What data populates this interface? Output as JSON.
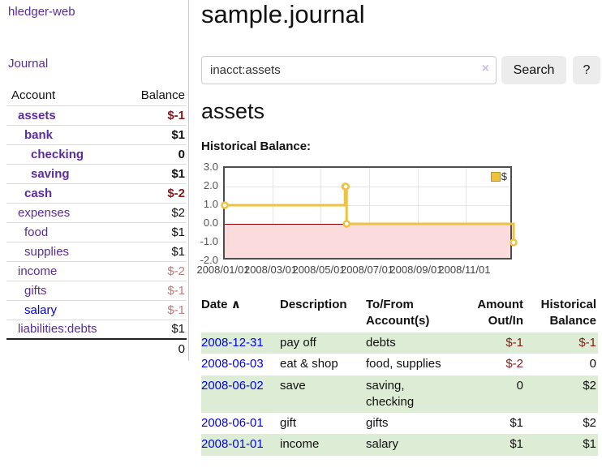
{
  "colors": {
    "link_purple": "#5a2ca0",
    "link_blue": "#0000ee",
    "negative_strong": "#841a1a",
    "negative_soft": "#bd7b7b",
    "row_stripe_green": "#ddecd4",
    "chart_line_gold": "#edc240",
    "chart_negative_region": "#fbdbdb",
    "chart_zero_line": "#8b0000",
    "button_gray": "#ececec"
  },
  "sidebar": {
    "brand": "hledger-web",
    "nav_journal": "Journal",
    "accounts_table": {
      "header_account": "Account",
      "header_balance": "Balance",
      "rows": [
        {
          "label": "assets",
          "indent": 0,
          "bold": true,
          "link_color": "purple",
          "balance": "$-1",
          "balance_style": "neg-strong"
        },
        {
          "label": "bank",
          "indent": 1,
          "bold": true,
          "link_color": "purple",
          "balance": "$1",
          "balance_style": "plain"
        },
        {
          "label": "checking",
          "indent": 2,
          "bold": true,
          "link_color": "purple",
          "balance": "0",
          "balance_style": "plain"
        },
        {
          "label": "saving",
          "indent": 2,
          "bold": true,
          "link_color": "purple",
          "balance": "$1",
          "balance_style": "plain"
        },
        {
          "label": "cash",
          "indent": 1,
          "bold": true,
          "link_color": "purple",
          "balance": "$-2",
          "balance_style": "neg-strong"
        },
        {
          "label": "expenses",
          "indent": 0,
          "bold": false,
          "link_color": "purple",
          "balance": "$2",
          "balance_style": "plain"
        },
        {
          "label": "food",
          "indent": 1,
          "bold": false,
          "link_color": "purple",
          "balance": "$1",
          "balance_style": "plain"
        },
        {
          "label": "supplies",
          "indent": 1,
          "bold": false,
          "link_color": "purple",
          "balance": "$1",
          "balance_style": "plain"
        },
        {
          "label": "income",
          "indent": 0,
          "bold": false,
          "link_color": "purple",
          "balance": "$-2",
          "balance_style": "neg-soft"
        },
        {
          "label": "gifts",
          "indent": 1,
          "bold": false,
          "link_color": "purple",
          "balance": "$-1",
          "balance_style": "neg-soft"
        },
        {
          "label": "salary",
          "indent": 1,
          "bold": false,
          "link_color": "blue",
          "balance": "$-1",
          "balance_style": "neg-soft"
        },
        {
          "label": "liabilities:debts",
          "indent": 0,
          "bold": false,
          "link_color": "purple",
          "balance": "$1",
          "balance_style": "plain"
        }
      ],
      "total": "0"
    }
  },
  "header": {
    "title": "sample.journal"
  },
  "search": {
    "value": "inacct:assets",
    "clear_icon": "×",
    "button": "Search",
    "help_button": "?"
  },
  "account_page": {
    "heading": "assets",
    "chart_label": "Historical Balance:"
  },
  "chart_data": {
    "type": "line",
    "step": true,
    "title": "Historical Balance",
    "xlabel": "",
    "ylabel": "",
    "ylim": [
      -2,
      3
    ],
    "x_range_days": [
      0,
      365
    ],
    "grid": true,
    "legend": {
      "label": "$",
      "position": "top-right"
    },
    "zero_line_color": "#8b0000",
    "negative_region_color": "#fbdbdb",
    "y_ticks": [
      {
        "label": "3.0",
        "value": 3
      },
      {
        "label": "2.0",
        "value": 2
      },
      {
        "label": "1.0",
        "value": 1
      },
      {
        "label": "0.0",
        "value": 0
      },
      {
        "label": "-1.0",
        "value": -1
      },
      {
        "label": "-2.0",
        "value": -2
      }
    ],
    "x_ticks": [
      {
        "label": "2008/01/01",
        "day": 0
      },
      {
        "label": "2008/03/01",
        "day": 60
      },
      {
        "label": "2008/05/01",
        "day": 121
      },
      {
        "label": "2008/07/01",
        "day": 182
      },
      {
        "label": "2008/09/01",
        "day": 244
      },
      {
        "label": "2008/11/01",
        "day": 305
      }
    ],
    "series": [
      {
        "name": "$",
        "color": "#edc240",
        "marker_fill": "#ffffff",
        "points": [
          {
            "date": "2008-01-01",
            "day": 0,
            "y": 1
          },
          {
            "date": "2008-06-01",
            "day": 152,
            "y": 2
          },
          {
            "date": "2008-06-02",
            "day": 153,
            "y": 2
          },
          {
            "date": "2008-06-03",
            "day": 154,
            "y": 0
          },
          {
            "date": "2008-12-31",
            "day": 365,
            "y": -1
          }
        ]
      }
    ]
  },
  "register_table": {
    "headers": {
      "date": "Date",
      "sort_icon": "∧",
      "description": "Description",
      "accounts": "To/From Account(s)",
      "amount": "Amount Out/In",
      "balance": "Historical Balance"
    },
    "rows": [
      {
        "date": "2008-12-31",
        "description": "pay off",
        "accounts": "debts",
        "amount": "$-1",
        "amount_negative": true,
        "balance": "$-1",
        "balance_negative": true
      },
      {
        "date": "2008-06-03",
        "description": "eat & shop",
        "accounts": "food, supplies",
        "amount": "$-2",
        "amount_negative": true,
        "balance": "0",
        "balance_negative": false
      },
      {
        "date": "2008-06-02",
        "description": "save",
        "accounts": "saving, checking",
        "amount": "0",
        "amount_negative": false,
        "balance": "$2",
        "balance_negative": false
      },
      {
        "date": "2008-06-01",
        "description": "gift",
        "accounts": "gifts",
        "amount": "$1",
        "amount_negative": false,
        "balance": "$2",
        "balance_negative": false
      },
      {
        "date": "2008-01-01",
        "description": "income",
        "accounts": "salary",
        "amount": "$1",
        "amount_negative": false,
        "balance": "$1",
        "balance_negative": false
      }
    ]
  }
}
